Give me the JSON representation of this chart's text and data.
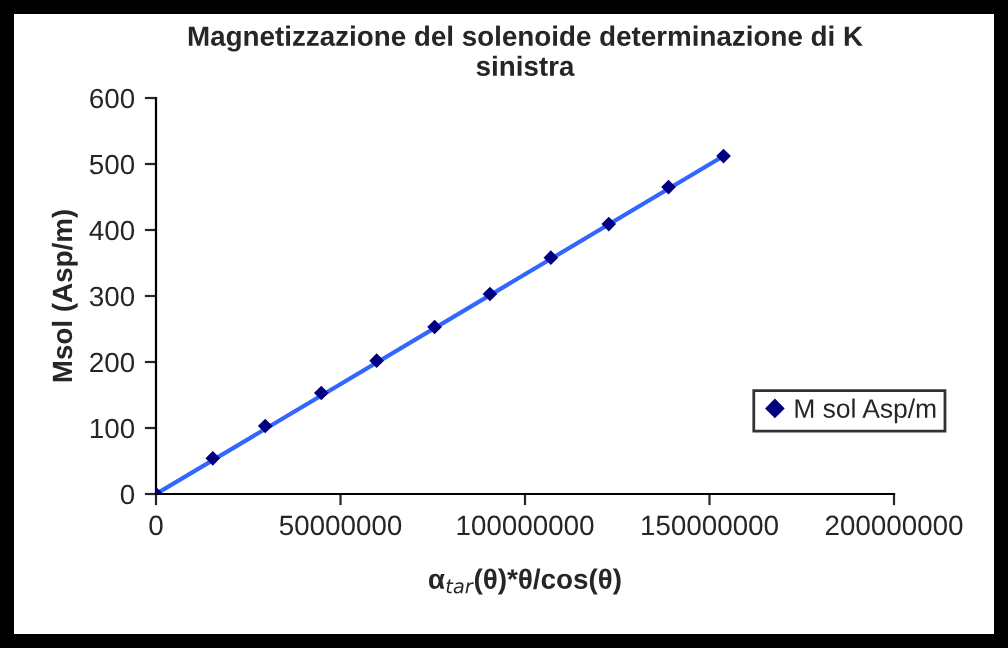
{
  "chart_data": {
    "type": "scatter",
    "title": "Magnetizzazione del solenoide determinazione di K\nsinistra",
    "xlabel": "α$_{tar}$(θ)*θ/cos(θ)",
    "ylabel": "Msol (Asp/m)",
    "x": [
      0,
      15400000,
      29600000,
      44800000,
      59800000,
      75500000,
      90500000,
      107000000,
      122700000,
      138900000,
      153800000
    ],
    "series": [
      {
        "name": "M sol Asp/m",
        "color": "#000080",
        "marker": "diamond",
        "values": [
          0,
          54,
          103,
          153,
          202,
          253,
          303,
          358,
          409,
          465,
          512
        ]
      },
      {
        "type": "line",
        "color": "#3366ff",
        "marker": "none",
        "x": [
          0,
          153800000
        ],
        "values": [
          0,
          512
        ]
      }
    ],
    "xlim": [
      0,
      200000000
    ],
    "xticks": [
      0,
      50000000,
      100000000,
      150000000,
      200000000
    ],
    "ylim": [
      0,
      600
    ],
    "yticks": [
      0,
      100,
      200,
      300,
      400,
      500,
      600
    ],
    "grid": false,
    "legend": "right"
  }
}
